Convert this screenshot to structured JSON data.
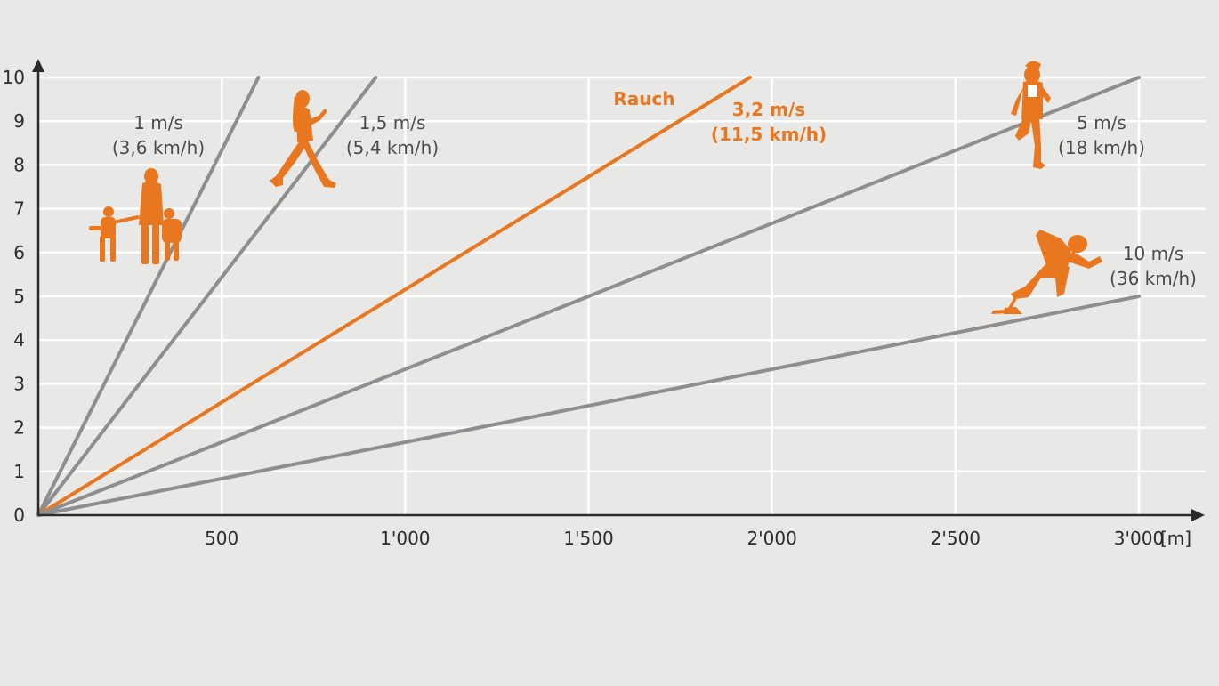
{
  "chart_data": {
    "type": "line",
    "title": "",
    "xlabel": "[m]",
    "ylabel": "",
    "xlim": [
      0,
      3000
    ],
    "ylim": [
      0,
      10
    ],
    "x_ticks": [
      500,
      1000,
      1500,
      2000,
      2500,
      3000
    ],
    "x_tick_labels": [
      "500",
      "1'000",
      "1'500",
      "2'000",
      "2'500",
      "3'000"
    ],
    "y_ticks": [
      0,
      1,
      2,
      3,
      4,
      5,
      6,
      7,
      8,
      9,
      10
    ],
    "y_tick_labels": [
      "0",
      "1",
      "2",
      "3",
      "4",
      "5",
      "6",
      "7",
      "8",
      "9",
      "10"
    ],
    "grid": true,
    "series": [
      {
        "name": "1 m/s",
        "label_lines": [
          "1 m/s",
          "(3,6 km/h)"
        ],
        "color": "#8e8e8e",
        "points": [
          [
            0,
            0
          ],
          [
            600,
            10
          ]
        ]
      },
      {
        "name": "1,5 m/s",
        "label_lines": [
          "1,5 m/s",
          "(5,4 km/h)"
        ],
        "color": "#8e8e8e",
        "points": [
          [
            0,
            0
          ],
          [
            920,
            10
          ]
        ]
      },
      {
        "name": "Rauch",
        "label_lines": [
          "3,2 m/s",
          "(11,5 km/h)"
        ],
        "color": "#e8771f",
        "points": [
          [
            0,
            0
          ],
          [
            1940,
            10
          ]
        ]
      },
      {
        "name": "5 m/s",
        "label_lines": [
          "5 m/s",
          "(18 km/h)"
        ],
        "color": "#8e8e8e",
        "points": [
          [
            0,
            0
          ],
          [
            3000,
            10
          ]
        ]
      },
      {
        "name": "10 m/s",
        "label_lines": [
          "10 m/s",
          "(36 km/h)"
        ],
        "color": "#8e8e8e",
        "points": [
          [
            0,
            0
          ],
          [
            3000,
            5
          ]
        ]
      }
    ],
    "series_label": "Rauch",
    "annotation_color": "#e8771f",
    "icons": [
      "family-icon",
      "walker-icon",
      "jogger-icon",
      "sprinter-icon"
    ]
  }
}
